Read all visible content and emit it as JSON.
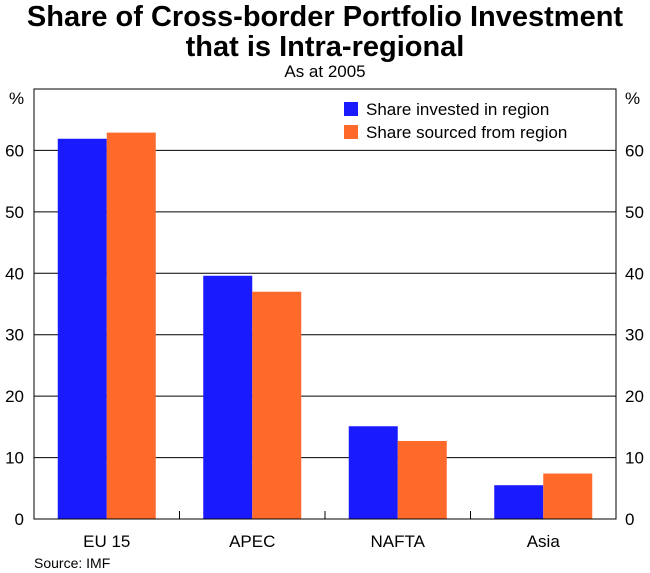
{
  "chart_data": {
    "type": "bar",
    "title_line1": "Share of Cross-border Portfolio Investment",
    "title_line2": "that is Intra-regional",
    "subtitle": "As at 2005",
    "ylabel_left": "%",
    "ylabel_right": "%",
    "ylim": [
      0,
      70
    ],
    "yticks": [
      0,
      10,
      20,
      30,
      40,
      50,
      60
    ],
    "categories": [
      "EU 15",
      "APEC",
      "NAFTA",
      "Asia"
    ],
    "series": [
      {
        "name": "Share invested in region",
        "color": "#1a1aff",
        "values": [
          61.9,
          39.6,
          15.1,
          5.5
        ]
      },
      {
        "name": "Share sourced from region",
        "color": "#ff6a2b",
        "values": [
          62.9,
          37.0,
          12.7,
          7.4
        ]
      }
    ],
    "legend_position": "top-right",
    "gridlines": true,
    "source": "Source: IMF"
  }
}
